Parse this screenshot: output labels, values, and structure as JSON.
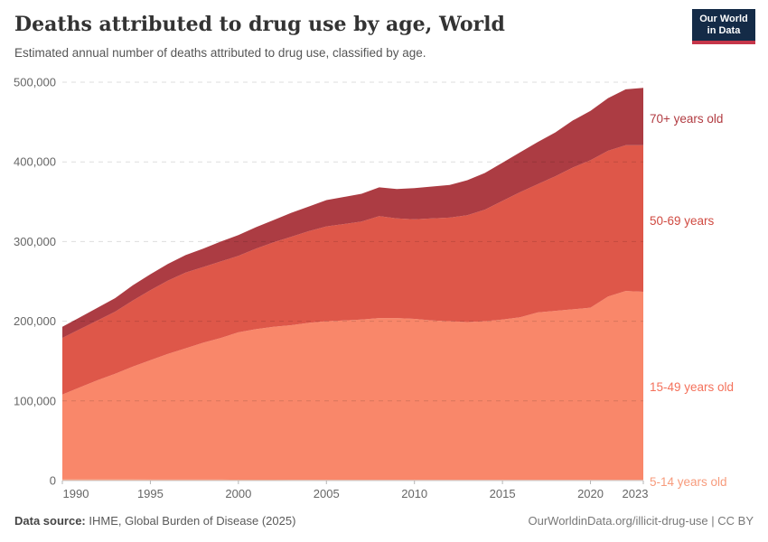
{
  "header": {
    "title": "Deaths attributed to drug use by age, World",
    "subtitle": "Estimated annual number of deaths attributed to drug use, classified by age.",
    "logo": {
      "line1": "Our World",
      "line2": "in Data",
      "bg_color": "#142B47",
      "accent_color": "#C5364A"
    }
  },
  "footer": {
    "datasource_label": "Data source:",
    "datasource_value": " IHME, Global Burden of Disease (2025)",
    "credit": "OurWorldinData.org/illicit-drug-use | CC BY"
  },
  "chart_data": {
    "type": "area",
    "stacked": true,
    "title": "Deaths attributed to drug use by age, World",
    "xlabel": "",
    "ylabel": "",
    "grid": "horizontal-dashed",
    "legend_position": "right-edge-labels",
    "ylim": [
      0,
      500000
    ],
    "xlim": [
      1990,
      2023
    ],
    "x": [
      1990,
      1991,
      1992,
      1993,
      1994,
      1995,
      1996,
      1997,
      1998,
      1999,
      2000,
      2001,
      2002,
      2003,
      2004,
      2005,
      2006,
      2007,
      2008,
      2009,
      2010,
      2011,
      2012,
      2013,
      2014,
      2015,
      2016,
      2017,
      2018,
      2019,
      2020,
      2021,
      2022,
      2023
    ],
    "y_ticks": [
      {
        "value": 0,
        "label": "0"
      },
      {
        "value": 100000,
        "label": "100,000"
      },
      {
        "value": 200000,
        "label": "200,000"
      },
      {
        "value": 300000,
        "label": "300,000"
      },
      {
        "value": 400000,
        "label": "400,000"
      },
      {
        "value": 500000,
        "label": "500,000"
      }
    ],
    "x_ticks": [
      {
        "value": 1990,
        "label": "1990"
      },
      {
        "value": 1995,
        "label": "1995"
      },
      {
        "value": 2000,
        "label": "2000"
      },
      {
        "value": 2005,
        "label": "2005"
      },
      {
        "value": 2010,
        "label": "2010"
      },
      {
        "value": 2015,
        "label": "2015"
      },
      {
        "value": 2020,
        "label": "2020"
      },
      {
        "value": 2023,
        "label": "2023"
      }
    ],
    "series": [
      {
        "name": "5-14 years old",
        "label": "5-14 years old",
        "color": "#FBA17C",
        "label_color": "#F79B7C",
        "values": [
          1600,
          1500,
          1500,
          1400,
          1400,
          1300,
          1300,
          1200,
          1200,
          1200,
          1100,
          1100,
          1100,
          1000,
          1000,
          1000,
          1000,
          1000,
          900,
          900,
          900,
          900,
          900,
          900,
          900,
          900,
          900,
          900,
          900,
          900,
          800,
          800,
          800,
          800
        ]
      },
      {
        "name": "15-49 years old",
        "label": "15-49 years old",
        "color": "#F9876A",
        "label_color": "#F4715B",
        "values": [
          106400,
          115500,
          124500,
          132600,
          141600,
          149700,
          157700,
          164800,
          171800,
          177800,
          184900,
          188900,
          191900,
          194000,
          197000,
          199000,
          200000,
          201000,
          203100,
          203100,
          202100,
          200100,
          199100,
          198100,
          199100,
          201100,
          204100,
          210100,
          212100,
          214100,
          216200,
          230200,
          237200,
          236200
        ]
      },
      {
        "name": "50-69 years",
        "label": "50-69 years",
        "color": "#DE5749",
        "label_color": "#D04A41",
        "values": [
          71000,
          73000,
          75000,
          78000,
          83000,
          88000,
          92000,
          95000,
          95000,
          96000,
          96000,
          101000,
          106000,
          111000,
          115000,
          119000,
          121000,
          123000,
          128000,
          125000,
          125000,
          128000,
          130000,
          134000,
          140000,
          149000,
          157000,
          161000,
          169000,
          178000,
          185000,
          183000,
          183000,
          184000
        ]
      },
      {
        "name": "70+ years old",
        "label": "70+ years old",
        "color": "#AC3C43",
        "label_color": "#B13B41",
        "values": [
          14000,
          15000,
          16000,
          17000,
          19000,
          20000,
          21000,
          22000,
          23000,
          25000,
          26000,
          27000,
          28000,
          30000,
          31000,
          33000,
          34000,
          35000,
          36000,
          37000,
          39000,
          40000,
          41000,
          44000,
          46000,
          48000,
          50000,
          53000,
          55000,
          59000,
          62000,
          66000,
          70000,
          72000
        ]
      }
    ]
  }
}
